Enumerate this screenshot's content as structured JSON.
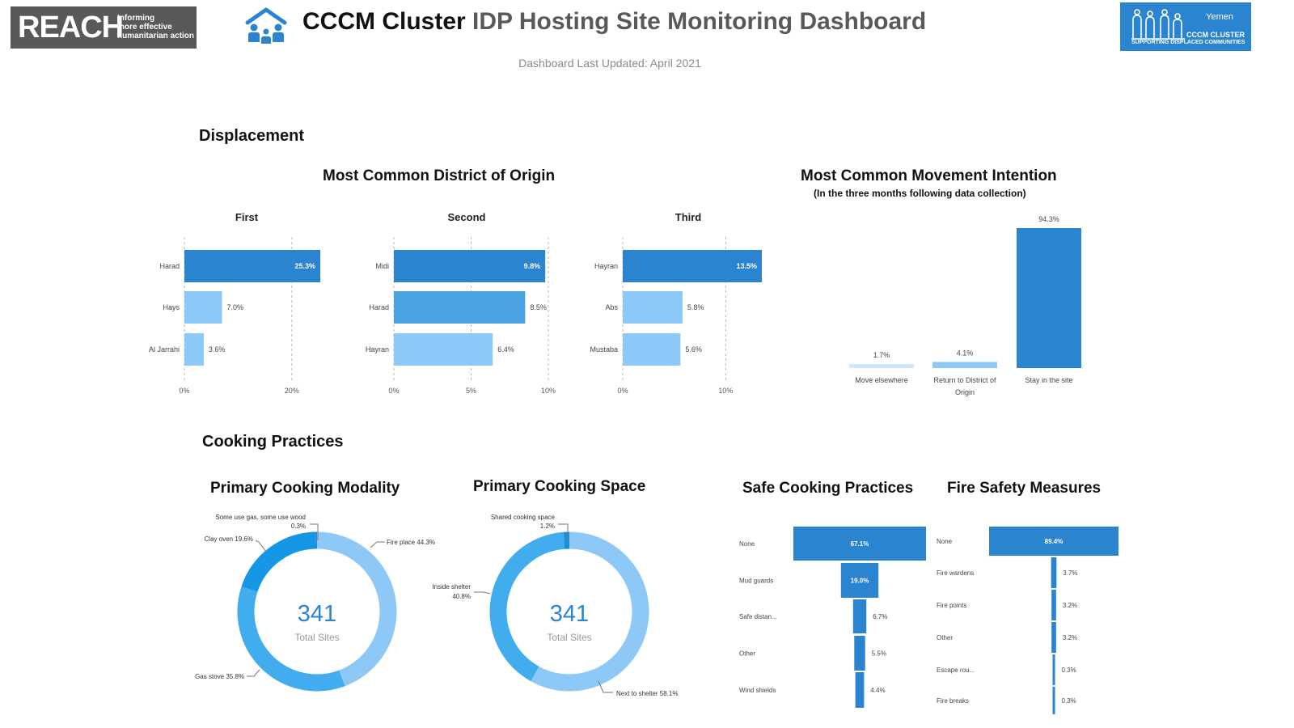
{
  "header": {
    "reach_word": "REACH",
    "reach_tagline": [
      "Informing",
      "more effective",
      "humanitarian action"
    ],
    "title_bold": "CCCM Cluster",
    "title_rest": "IDP Hosting Site Monitoring Dashboard",
    "updated": "Dashboard Last Updated: April 2021",
    "cccm_logo": {
      "country": "Yemen",
      "name": "CCCM CLUSTER",
      "tagline": "SUPPORTING DISPLACED COMMUNITIES"
    }
  },
  "colors": {
    "dark_blue": "#2a84cf",
    "mid_blue": "#4ba2e0",
    "light_blue": "#8ec8f6",
    "pale_blue": "#cfe6fb",
    "donut_dark": "#1597e5",
    "donut_mid": "#42adee",
    "donut_light": "#8ec8f6"
  },
  "sections": {
    "displacement": "Displacement",
    "cooking": "Cooking Practices"
  },
  "titles": {
    "origin": "Most Common District of Origin",
    "intention": "Most Common Movement Intention",
    "intention_note": "(In the three months following data collection)",
    "modality": "Primary Cooking Modality",
    "space": "Primary Cooking Space",
    "safe": "Safe Cooking Practices",
    "fire": "Fire Safety Measures"
  },
  "chart_data": [
    {
      "id": "origin_first",
      "type": "bar",
      "orientation": "horizontal",
      "title": "First",
      "categories": [
        "Harad",
        "Hays",
        "Al Jarrahi"
      ],
      "values": [
        25.3,
        7.0,
        3.6
      ],
      "labels": [
        "25.3%",
        "7.0%",
        "3.6%"
      ],
      "ticks": [
        "0%",
        "20%"
      ],
      "xlim": [
        0,
        25.3
      ]
    },
    {
      "id": "origin_second",
      "type": "bar",
      "orientation": "horizontal",
      "title": "Second",
      "categories": [
        "Midi",
        "Harad",
        "Hayran"
      ],
      "values": [
        9.8,
        8.5,
        6.4
      ],
      "labels": [
        "9.8%",
        "8.5%",
        "6.4%"
      ],
      "ticks": [
        "0%",
        "5%",
        "10%"
      ],
      "xlim": [
        0,
        10
      ]
    },
    {
      "id": "origin_third",
      "type": "bar",
      "orientation": "horizontal",
      "title": "Third",
      "categories": [
        "Hayran",
        "Abs",
        "Mustaba"
      ],
      "values": [
        13.5,
        5.8,
        5.6
      ],
      "labels": [
        "13.5%",
        "5.8%",
        "5.6%"
      ],
      "ticks": [
        "0%",
        "10%"
      ],
      "xlim": [
        0,
        13.5
      ]
    },
    {
      "id": "movement_intention",
      "type": "bar",
      "orientation": "vertical",
      "categories": [
        "Move elsewhere",
        "Return to District of Origin",
        "Stay in the site"
      ],
      "values": [
        1.7,
        4.1,
        94.3
      ],
      "labels": [
        "1.7%",
        "4.1%",
        "94.3%"
      ],
      "ylim": [
        0,
        94.3
      ]
    },
    {
      "id": "cooking_modality",
      "type": "pie",
      "donut": true,
      "center_value": "341",
      "center_label": "Total Sites",
      "slices": [
        {
          "label": "Fire place",
          "value": 44.3,
          "text": "Fire place 44.3%"
        },
        {
          "label": "Gas stove",
          "value": 35.8,
          "text": "Gas stove 35.8%"
        },
        {
          "label": "Clay oven",
          "value": 19.6,
          "text": "Clay oven 19.6%"
        },
        {
          "label": "Some use gas, some use wood",
          "value": 0.3,
          "text": "Some use gas, some use wood",
          "text2": "0.3%"
        }
      ]
    },
    {
      "id": "cooking_space",
      "type": "pie",
      "donut": true,
      "center_value": "341",
      "center_label": "Total Sites",
      "slices": [
        {
          "label": "Next to shelter",
          "value": 58.1,
          "text": "Next to shelter 58.1%"
        },
        {
          "label": "Inside shelter",
          "value": 40.8,
          "text": "Inside shelter",
          "text2": "40.8%"
        },
        {
          "label": "Shared cooking space",
          "value": 1.2,
          "text": "Shared cooking space",
          "text2": "1.2%"
        }
      ]
    },
    {
      "id": "safe_cooking",
      "type": "bar",
      "orientation": "horizontal",
      "categories": [
        "None",
        "Mud guards",
        "Safe distan...",
        "Other",
        "Wind shields"
      ],
      "values": [
        67.1,
        19.0,
        6.7,
        5.5,
        4.4
      ],
      "labels": [
        "67.1%",
        "19.0%",
        "6.7%",
        "5.5%",
        "4.4%"
      ]
    },
    {
      "id": "fire_safety",
      "type": "bar",
      "orientation": "horizontal",
      "categories": [
        "None",
        "Fire wardens",
        "Fire points",
        "Other",
        "Escape rou...",
        "Fire breaks"
      ],
      "values": [
        89.4,
        3.7,
        3.2,
        3.2,
        0.3,
        0.3
      ],
      "labels": [
        "89.4%",
        "3.7%",
        "3.2%",
        "3.2%",
        "0.3%",
        "0.3%"
      ]
    }
  ]
}
